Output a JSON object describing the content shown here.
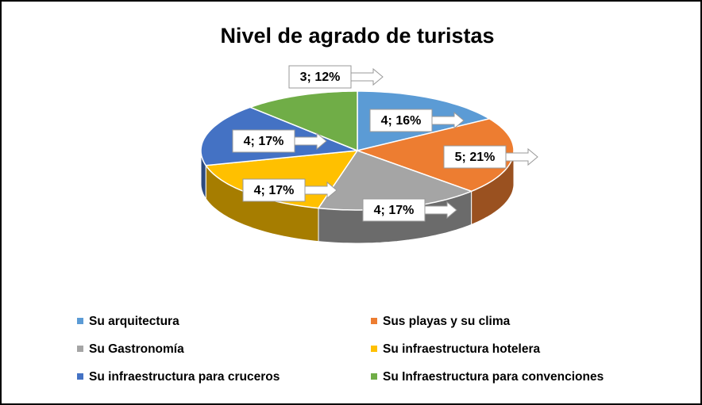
{
  "chart_data": {
    "type": "pie3d",
    "title": "Nivel de agrado de turistas",
    "categories": [
      "Su arquitectura",
      "Sus playas y su clima",
      "Su Gastronomía",
      "Su infraestructura hotelera",
      "Su infraestructura para cruceros",
      "Su Infraestructura para convenciones"
    ],
    "values": [
      4,
      5,
      4,
      4,
      4,
      3
    ],
    "percentages": [
      16,
      21,
      17,
      17,
      17,
      12
    ],
    "value_labels": [
      "4; 16%",
      "5; 21%",
      "4; 17%",
      "4; 17%",
      "4; 17%",
      "3; 12%"
    ],
    "colors": [
      "#5b9bd5",
      "#ed7d31",
      "#a5a5a5",
      "#ffc000",
      "#4472c4",
      "#70ad47"
    ],
    "legend": "bottom"
  }
}
